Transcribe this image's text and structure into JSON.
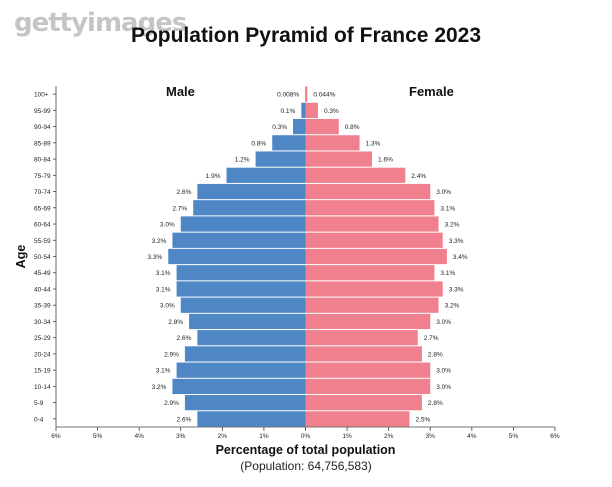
{
  "watermark": "gettyimages",
  "chart_data": {
    "type": "bar",
    "orientation": "horizontal-pyramid",
    "title": "Population Pyramid of France 2023",
    "subtitle": "(Population: 64,756,583)",
    "xlabel": "Percentage of total population",
    "ylabel": "Age",
    "xlim": [
      -6,
      6
    ],
    "xticks": [
      -6,
      -5,
      -4,
      -3,
      -2,
      -1,
      0,
      1,
      2,
      3,
      4,
      5,
      6
    ],
    "xtick_labels": [
      "6%",
      "5%",
      "4%",
      "3%",
      "2%",
      "1%",
      "0%",
      "1%",
      "2%",
      "3%",
      "4%",
      "5%",
      "6%"
    ],
    "categories": [
      "0-4",
      "5-9",
      "10-14",
      "15-19",
      "20-24",
      "25-29",
      "30-34",
      "35-39",
      "40-44",
      "45-49",
      "50-54",
      "55-59",
      "60-64",
      "65-69",
      "70-74",
      "75-79",
      "80-84",
      "85-89",
      "90-94",
      "95-99",
      "100+"
    ],
    "series": [
      {
        "name": "Male",
        "color": "#4f86c6",
        "values": [
          2.6,
          2.9,
          3.2,
          3.1,
          2.9,
          2.6,
          2.8,
          3.0,
          3.1,
          3.1,
          3.3,
          3.2,
          3.0,
          2.7,
          2.6,
          1.9,
          1.2,
          0.8,
          0.3,
          0.1,
          0.008
        ],
        "value_labels": [
          "2.6%",
          "2.9%",
          "3.2%",
          "3.1%",
          "2.9%",
          "2.6%",
          "2.8%",
          "3.0%",
          "3.1%",
          "3.1%",
          "3.3%",
          "3.2%",
          "3.0%",
          "2.7%",
          "2.6%",
          "1.9%",
          "1.2%",
          "0.8%",
          "0.3%",
          "0.1%",
          "0.008%"
        ]
      },
      {
        "name": "Female",
        "color": "#f0808e",
        "values": [
          2.5,
          2.8,
          3.0,
          3.0,
          2.8,
          2.7,
          3.0,
          3.2,
          3.3,
          3.1,
          3.4,
          3.3,
          3.2,
          3.1,
          3.0,
          2.4,
          1.6,
          1.3,
          0.8,
          0.3,
          0.044
        ],
        "value_labels": [
          "2.5%",
          "2.8%",
          "3.0%",
          "3.0%",
          "2.8%",
          "2.7%",
          "3.0%",
          "3.2%",
          "3.3%",
          "3.1%",
          "3.4%",
          "3.3%",
          "3.2%",
          "3.1%",
          "3.0%",
          "2.4%",
          "1.6%",
          "1.3%",
          "0.8%",
          "0.3%",
          "0.044%"
        ]
      }
    ],
    "grid": false,
    "legend": "none"
  }
}
